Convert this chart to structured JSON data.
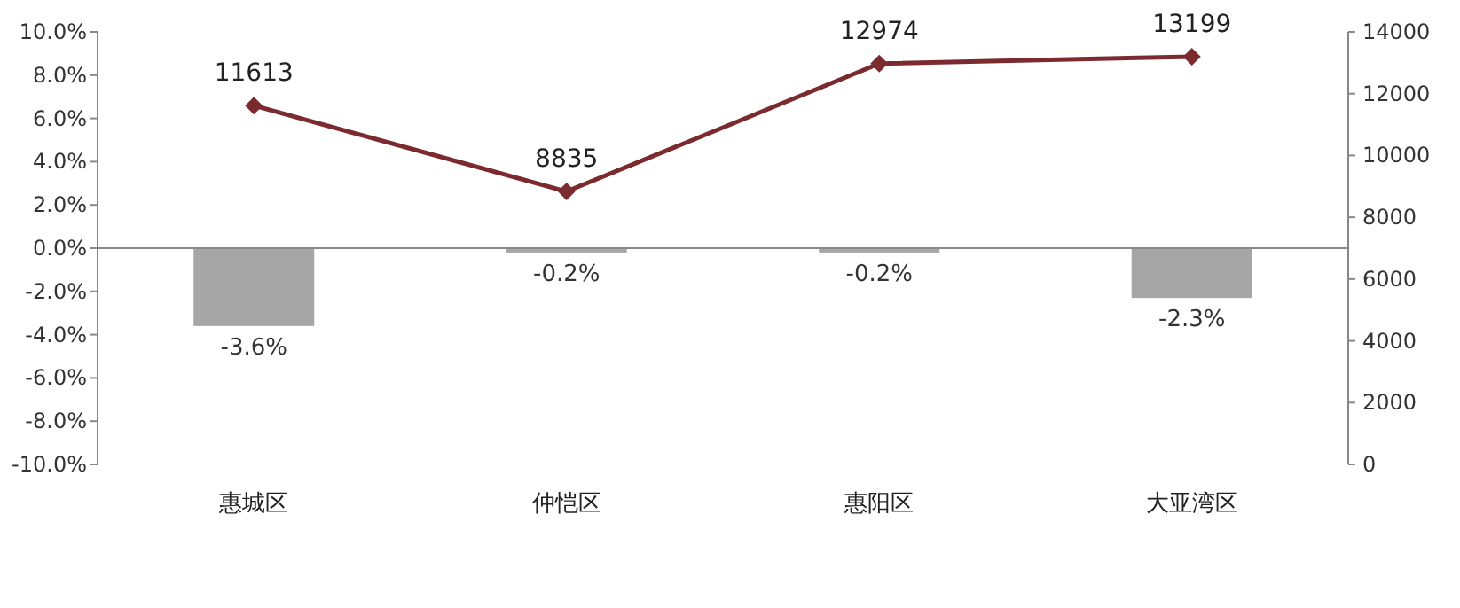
{
  "chart_data": {
    "type": "bar",
    "categories": [
      "惠城区",
      "仲恺区",
      "惠阳区",
      "大亚湾区"
    ],
    "series": [
      {
        "color": "#a6a6a6",
        "values": [
          -3.6,
          -0.2,
          -0.2,
          -2.3
        ],
        "value_labels": [
          "-3.6%",
          "-0.2%",
          "-0.2%",
          "-2.3%"
        ]
      },
      {
        "type": "line",
        "axis": "y2",
        "color": "#7b2a2e",
        "values": [
          11613,
          8835,
          12974,
          13199
        ],
        "value_labels": [
          "11613",
          "8835",
          "12974",
          "13199"
        ]
      }
    ],
    "ylim": [
      -10,
      10
    ],
    "yticks": [
      {
        "value": -10,
        "label": "-10.0%"
      },
      {
        "value": -8,
        "label": "-8.0%"
      },
      {
        "value": -6,
        "label": "-6.0%"
      },
      {
        "value": -4,
        "label": "-4.0%"
      },
      {
        "value": -2,
        "label": "-2.0%"
      },
      {
        "value": 0,
        "label": "0.0%"
      },
      {
        "value": 2,
        "label": "2.0%"
      },
      {
        "value": 4,
        "label": "4.0%"
      },
      {
        "value": 6,
        "label": "6.0%"
      },
      {
        "value": 8,
        "label": "8.0%"
      },
      {
        "value": 10,
        "label": "10.0%"
      }
    ],
    "y2lim": [
      0,
      14000
    ],
    "y2ticks": [
      0,
      2000,
      4000,
      6000,
      8000,
      10000,
      12000,
      14000
    ],
    "marker": "diamond"
  }
}
